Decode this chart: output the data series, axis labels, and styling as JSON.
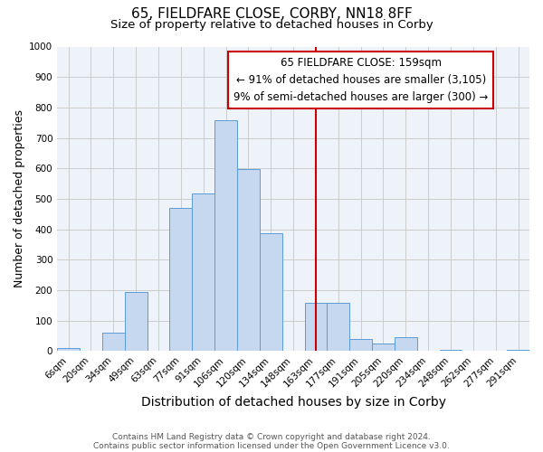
{
  "title": "65, FIELDFARE CLOSE, CORBY, NN18 8FF",
  "subtitle": "Size of property relative to detached houses in Corby",
  "xlabel": "Distribution of detached houses by size in Corby",
  "ylabel": "Number of detached properties",
  "footnote1": "Contains HM Land Registry data © Crown copyright and database right 2024.",
  "footnote2": "Contains public sector information licensed under the Open Government Licence v3.0.",
  "bar_labels": [
    "6sqm",
    "20sqm",
    "34sqm",
    "49sqm",
    "63sqm",
    "77sqm",
    "91sqm",
    "106sqm",
    "120sqm",
    "134sqm",
    "148sqm",
    "163sqm",
    "177sqm",
    "191sqm",
    "205sqm",
    "220sqm",
    "234sqm",
    "248sqm",
    "262sqm",
    "277sqm",
    "291sqm"
  ],
  "bar_heights": [
    10,
    0,
    62,
    195,
    0,
    470,
    518,
    757,
    597,
    387,
    0,
    160,
    160,
    40,
    25,
    45,
    0,
    5,
    0,
    0,
    5
  ],
  "bar_color": "#c5d8f0",
  "bar_edge_color": "#5b9bd5",
  "vline_x": 11,
  "vline_color": "#cc0000",
  "annotation_text": "65 FIELDFARE CLOSE: 159sqm\n← 91% of detached houses are smaller (3,105)\n9% of semi-detached houses are larger (300) →",
  "annotation_box_color": "#cc0000",
  "annotation_box_fill": "#ffffff",
  "ylim": [
    0,
    1000
  ],
  "yticks": [
    0,
    100,
    200,
    300,
    400,
    500,
    600,
    700,
    800,
    900,
    1000
  ],
  "background_color": "#ffffff",
  "grid_color": "#cccccc",
  "title_fontsize": 11,
  "subtitle_fontsize": 9.5,
  "xlabel_fontsize": 10,
  "ylabel_fontsize": 9,
  "tick_fontsize": 7.5,
  "annotation_fontsize": 8.5,
  "footnote_fontsize": 6.5
}
